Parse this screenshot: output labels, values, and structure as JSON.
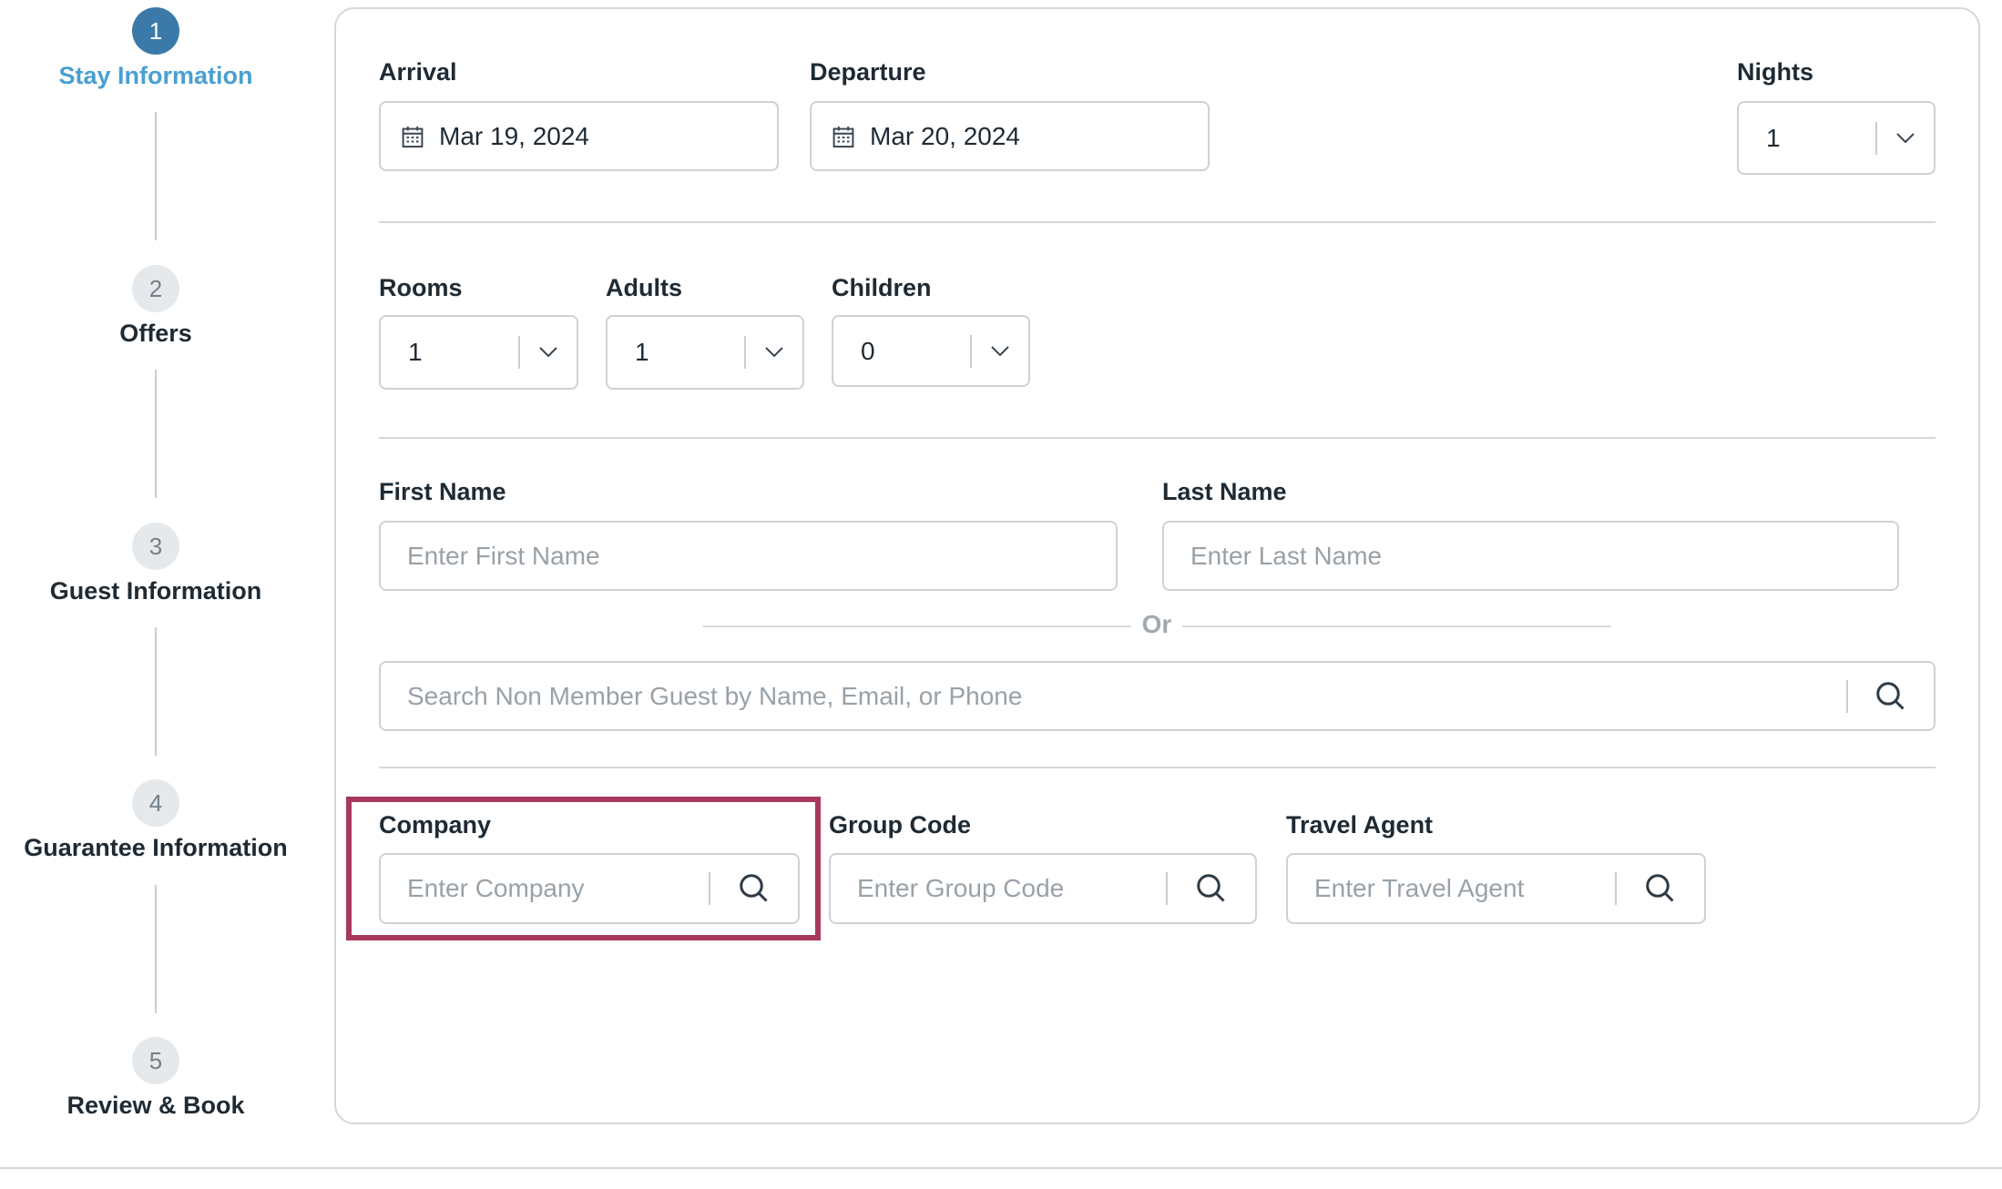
{
  "steps": [
    {
      "number": "1",
      "label": "Stay Information",
      "active": true
    },
    {
      "number": "2",
      "label": "Offers",
      "active": false
    },
    {
      "number": "3",
      "label": "Guest Information",
      "active": false
    },
    {
      "number": "4",
      "label": "Guarantee Information",
      "active": false
    },
    {
      "number": "5",
      "label": "Review & Book",
      "active": false
    }
  ],
  "stay": {
    "arrival": {
      "label": "Arrival",
      "value": "Mar 19, 2024",
      "icon": "calendar-icon"
    },
    "departure": {
      "label": "Departure",
      "value": "Mar 20, 2024",
      "icon": "calendar-icon"
    },
    "nights": {
      "label": "Nights",
      "value": "1"
    }
  },
  "occupancy": {
    "rooms": {
      "label": "Rooms",
      "value": "1"
    },
    "adults": {
      "label": "Adults",
      "value": "1"
    },
    "children": {
      "label": "Children",
      "value": "0"
    }
  },
  "guest": {
    "first_name": {
      "label": "First Name",
      "placeholder": "Enter First Name"
    },
    "last_name": {
      "label": "Last Name",
      "placeholder": "Enter Last Name"
    },
    "or_label": "Or",
    "search": {
      "placeholder": "Search Non Member Guest by Name, Email, or Phone"
    }
  },
  "affiliations": {
    "company": {
      "label": "Company",
      "placeholder": "Enter Company"
    },
    "group_code": {
      "label": "Group Code",
      "placeholder": "Enter Group Code"
    },
    "travel_agent": {
      "label": "Travel Agent",
      "placeholder": "Enter Travel Agent"
    }
  },
  "colors": {
    "accent": "#3b7aa8",
    "active_step_text": "#4a9fd2",
    "highlight": "#a8385a"
  }
}
